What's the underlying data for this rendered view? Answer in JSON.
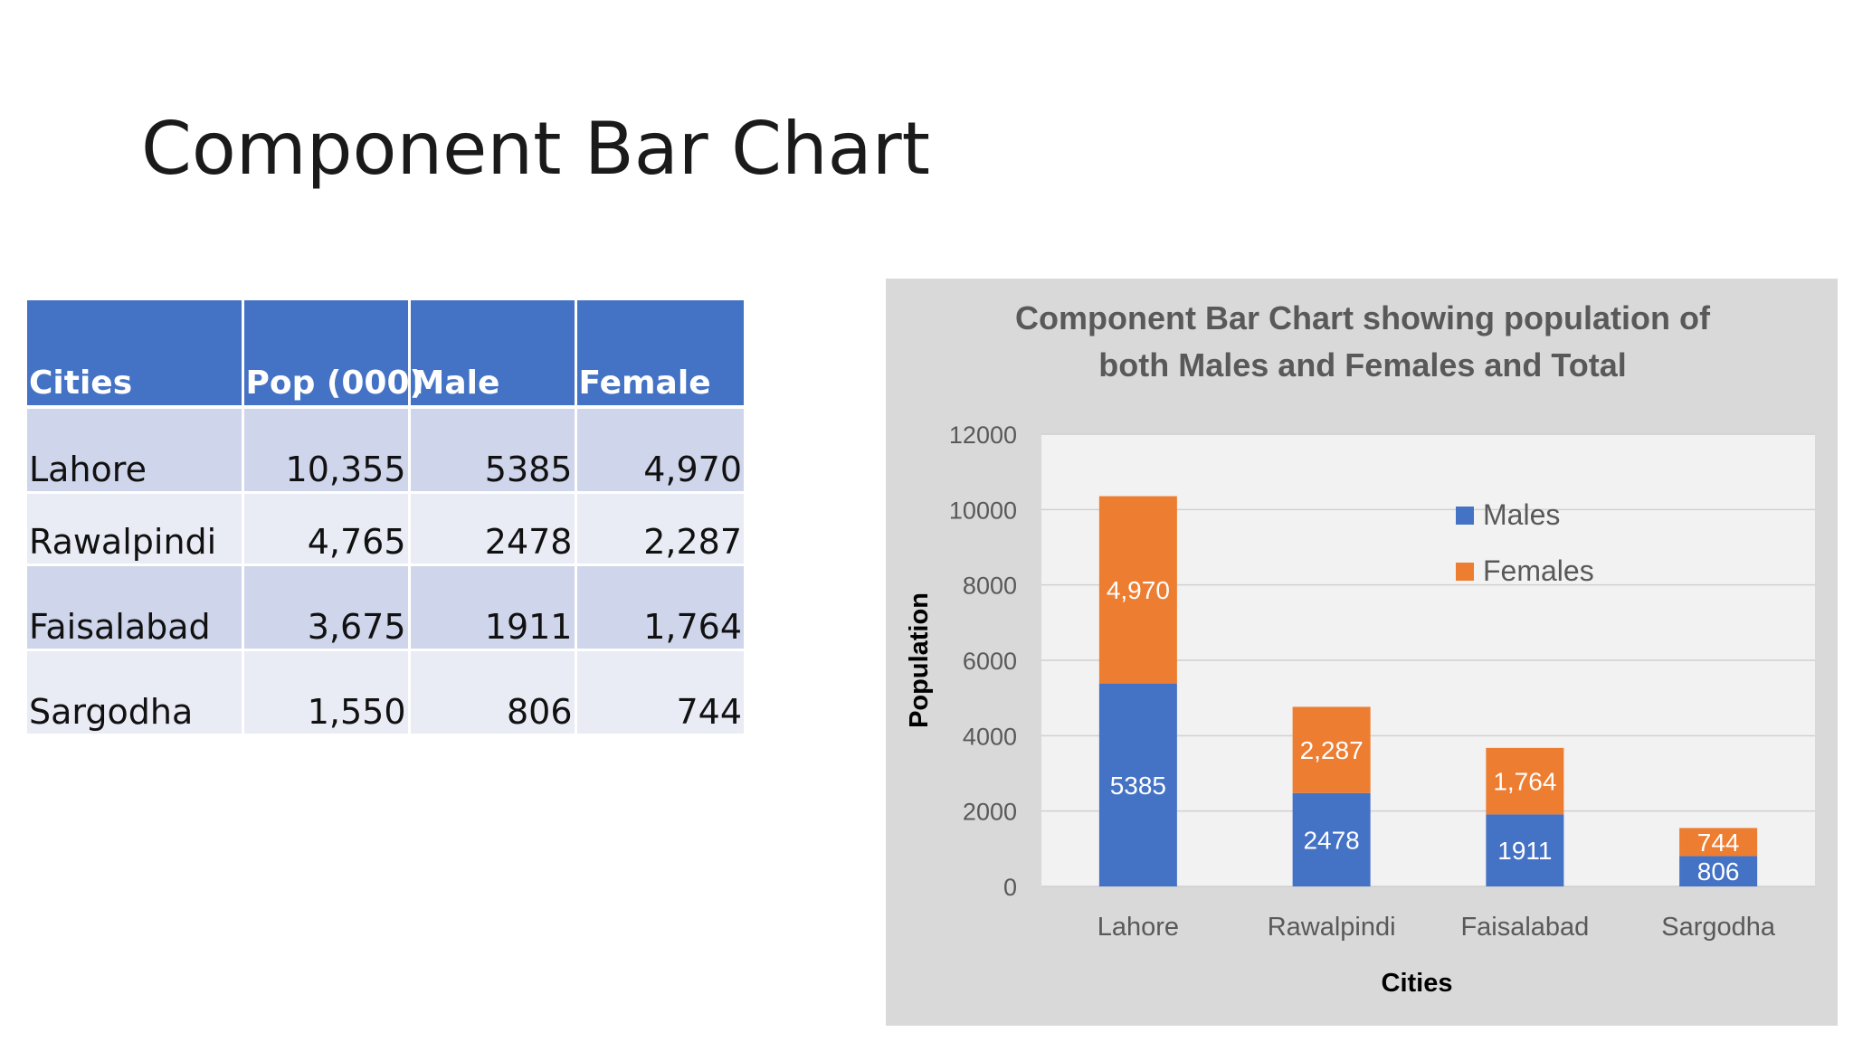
{
  "slide": {
    "title": "Component Bar Chart"
  },
  "table": {
    "headers": [
      "Cities",
      "Pop (000)",
      "Male",
      "Female"
    ],
    "rows": [
      [
        "Lahore",
        "10,355",
        "5385",
        "4,970"
      ],
      [
        "Rawalpindi",
        "4,765",
        "2478",
        "2,287"
      ],
      [
        "Faisalabad",
        "3,675",
        "1911",
        "1,764"
      ],
      [
        "Sargodha",
        "1,550",
        "806",
        "744"
      ]
    ]
  },
  "chart_data": {
    "type": "bar",
    "stacked": true,
    "title": "Component Bar Chart showing population of both Males and Females and Total",
    "title_lines": [
      "Component Bar Chart showing population of",
      "both Males and Females and Total"
    ],
    "xlabel": "Cities",
    "ylabel": "Population",
    "categories": [
      "Lahore",
      "Rawalpindi",
      "Faisalabad",
      "Sargodha"
    ],
    "series": [
      {
        "name": "Males",
        "values": [
          5385,
          2478,
          1911,
          806
        ],
        "labels": [
          "5385",
          "2478",
          "1911",
          "806"
        ],
        "color": "#4472c4"
      },
      {
        "name": "Females",
        "values": [
          4970,
          2287,
          1764,
          744
        ],
        "labels": [
          "4,970",
          "2,287",
          "1,764",
          "744"
        ],
        "color": "#ed7d31"
      }
    ],
    "ylim": [
      0,
      12000
    ],
    "yticks": [
      0,
      2000,
      4000,
      6000,
      8000,
      10000,
      12000
    ],
    "grid": true,
    "legend": "top-right",
    "colors": {
      "plot_background": "#f2f2f2",
      "panel_background": "#d9d9d9",
      "gridline": "#d0d0d0"
    }
  }
}
